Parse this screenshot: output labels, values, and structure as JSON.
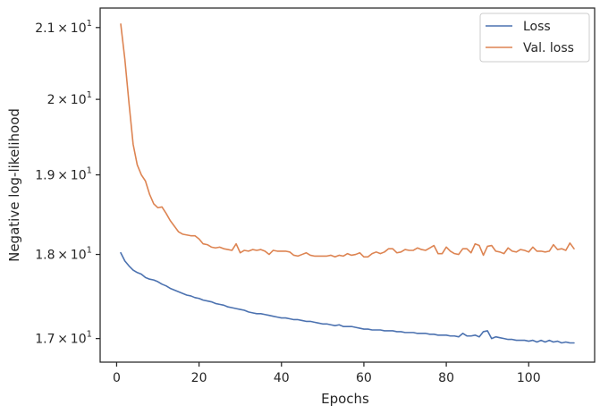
{
  "chart_data": {
    "type": "line",
    "xlabel": "Epochs",
    "ylabel": "Negative log-likelihood",
    "xlim": [
      -4,
      116
    ],
    "ylim": [
      16.73,
      21.28
    ],
    "yscale": "log",
    "grid": false,
    "legend_position": "top-right",
    "x_ticks": [
      0,
      20,
      40,
      60,
      80,
      100
    ],
    "x_tick_labels": [
      "0",
      "20",
      "40",
      "60",
      "80",
      "100"
    ],
    "y_ticks": [
      17,
      18,
      19,
      20,
      21
    ],
    "y_tick_labels": [
      {
        "mant": "1.7",
        "exp": "1"
      },
      {
        "mant": "1.8",
        "exp": "1"
      },
      {
        "mant": "1.9",
        "exp": "1"
      },
      {
        "mant": "2",
        "exp": "1"
      },
      {
        "mant": "2.1",
        "exp": "1"
      }
    ],
    "series": [
      {
        "name": "Loss",
        "color": "#4c72b0",
        "x": [
          1,
          2,
          3,
          4,
          5,
          6,
          7,
          8,
          9,
          10,
          11,
          12,
          13,
          14,
          15,
          16,
          17,
          18,
          19,
          20,
          21,
          22,
          23,
          24,
          25,
          26,
          27,
          28,
          29,
          30,
          31,
          32,
          33,
          34,
          35,
          36,
          37,
          38,
          39,
          40,
          41,
          42,
          43,
          44,
          45,
          46,
          47,
          48,
          49,
          50,
          51,
          52,
          53,
          54,
          55,
          56,
          57,
          58,
          59,
          60,
          61,
          62,
          63,
          64,
          65,
          66,
          67,
          68,
          69,
          70,
          71,
          72,
          73,
          74,
          75,
          76,
          77,
          78,
          79,
          80,
          81,
          82,
          83,
          84,
          85,
          86,
          87,
          88,
          89,
          90,
          91,
          92,
          93,
          94,
          95,
          96,
          97,
          98,
          99,
          100,
          101,
          102,
          103,
          104,
          105,
          106,
          107,
          108,
          109,
          110,
          111
        ],
        "y": [
          18.02,
          17.92,
          17.86,
          17.81,
          17.78,
          17.76,
          17.72,
          17.7,
          17.69,
          17.67,
          17.64,
          17.62,
          17.59,
          17.57,
          17.55,
          17.53,
          17.51,
          17.5,
          17.48,
          17.47,
          17.45,
          17.44,
          17.43,
          17.41,
          17.4,
          17.39,
          17.37,
          17.36,
          17.35,
          17.34,
          17.33,
          17.31,
          17.3,
          17.29,
          17.29,
          17.28,
          17.27,
          17.26,
          17.25,
          17.24,
          17.24,
          17.23,
          17.22,
          17.22,
          17.21,
          17.2,
          17.2,
          17.19,
          17.18,
          17.17,
          17.17,
          17.16,
          17.15,
          17.16,
          17.14,
          17.14,
          17.14,
          17.13,
          17.12,
          17.11,
          17.11,
          17.1,
          17.1,
          17.1,
          17.09,
          17.09,
          17.09,
          17.08,
          17.08,
          17.07,
          17.07,
          17.07,
          17.06,
          17.06,
          17.06,
          17.05,
          17.05,
          17.04,
          17.04,
          17.04,
          17.03,
          17.03,
          17.02,
          17.06,
          17.03,
          17.03,
          17.04,
          17.02,
          17.08,
          17.09,
          17.0,
          17.02,
          17.01,
          17.0,
          16.99,
          16.99,
          16.98,
          16.98,
          16.98,
          16.97,
          16.98,
          16.96,
          16.98,
          16.96,
          16.98,
          16.96,
          16.97,
          16.95,
          16.96,
          16.95,
          16.95
        ]
      },
      {
        "name": "Val. loss",
        "color": "#dd8452",
        "x": [
          1,
          2,
          3,
          4,
          5,
          6,
          7,
          8,
          9,
          10,
          11,
          12,
          13,
          14,
          15,
          16,
          17,
          18,
          19,
          20,
          21,
          22,
          23,
          24,
          25,
          26,
          27,
          28,
          29,
          30,
          31,
          32,
          33,
          34,
          35,
          36,
          37,
          38,
          39,
          40,
          41,
          42,
          43,
          44,
          45,
          46,
          47,
          48,
          49,
          50,
          51,
          52,
          53,
          54,
          55,
          56,
          57,
          58,
          59,
          60,
          61,
          62,
          63,
          64,
          65,
          66,
          67,
          68,
          69,
          70,
          71,
          72,
          73,
          74,
          75,
          76,
          77,
          78,
          79,
          80,
          81,
          82,
          83,
          84,
          85,
          86,
          87,
          88,
          89,
          90,
          91,
          92,
          93,
          94,
          95,
          96,
          97,
          98,
          99,
          100,
          101,
          102,
          103,
          104,
          105,
          106,
          107,
          108,
          109,
          110,
          111
        ],
        "y": [
          21.05,
          20.55,
          19.95,
          19.4,
          19.13,
          19.0,
          18.92,
          18.75,
          18.63,
          18.58,
          18.59,
          18.51,
          18.42,
          18.35,
          18.28,
          18.25,
          18.24,
          18.23,
          18.23,
          18.19,
          18.13,
          18.12,
          18.09,
          18.08,
          18.09,
          18.07,
          18.06,
          18.05,
          18.13,
          18.02,
          18.05,
          18.04,
          18.06,
          18.05,
          18.06,
          18.04,
          18.0,
          18.05,
          18.04,
          18.04,
          18.04,
          18.03,
          17.99,
          17.98,
          18.0,
          18.02,
          17.99,
          17.98,
          17.98,
          17.98,
          17.98,
          17.99,
          17.97,
          17.99,
          17.98,
          18.01,
          17.99,
          18.0,
          18.02,
          17.97,
          17.97,
          18.01,
          18.03,
          18.01,
          18.03,
          18.07,
          18.07,
          18.02,
          18.03,
          18.06,
          18.05,
          18.05,
          18.08,
          18.06,
          18.05,
          18.08,
          18.11,
          18.01,
          18.01,
          18.09,
          18.04,
          18.01,
          18.0,
          18.07,
          18.07,
          18.02,
          18.13,
          18.11,
          17.99,
          18.1,
          18.11,
          18.04,
          18.03,
          18.01,
          18.08,
          18.04,
          18.03,
          18.06,
          18.05,
          18.03,
          18.09,
          18.04,
          18.04,
          18.03,
          18.04,
          18.12,
          18.06,
          18.07,
          18.05,
          18.14,
          18.07
        ]
      }
    ]
  }
}
